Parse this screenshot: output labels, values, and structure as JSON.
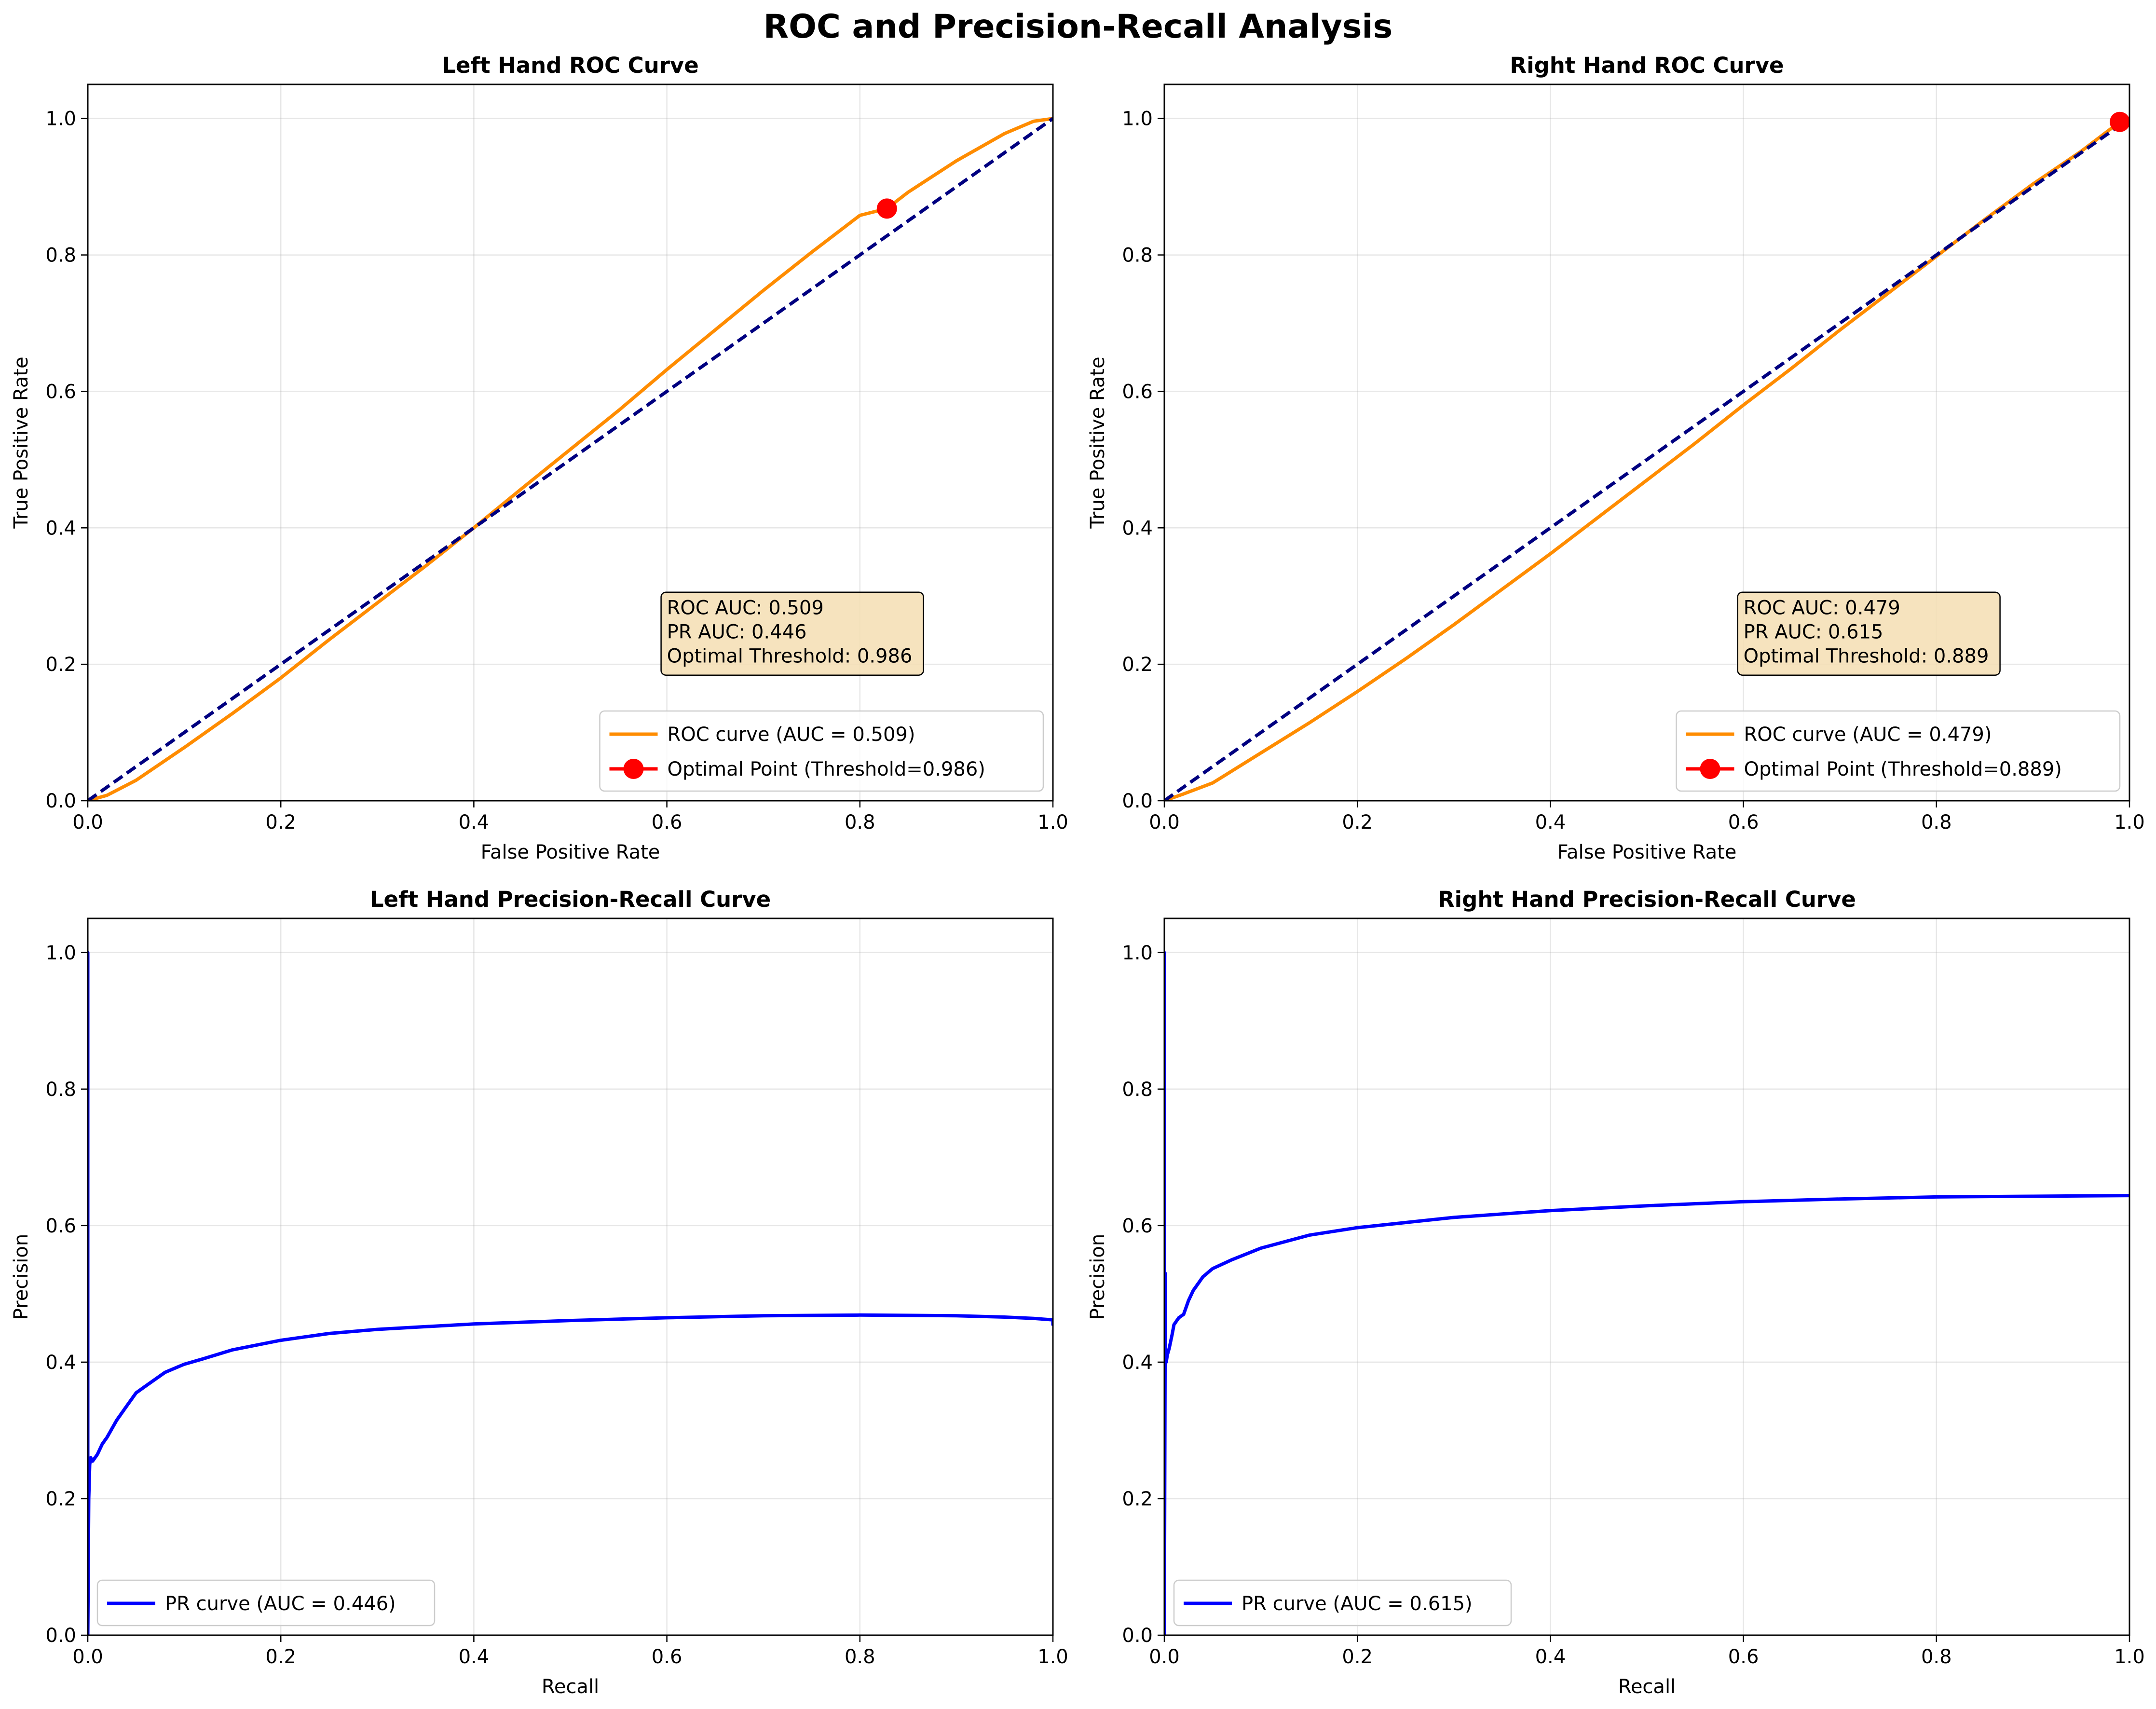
{
  "figure": {
    "title": "ROC and Precision-Recall Analysis"
  },
  "chart_data": [
    {
      "id": "left-roc",
      "type": "line",
      "title": "Left Hand ROC Curve",
      "xlabel": "False Positive Rate",
      "ylabel": "True Positive Rate",
      "xlim": [
        0,
        1
      ],
      "ylim": [
        0,
        1.05
      ],
      "xticks": [
        "0.0",
        "0.2",
        "0.4",
        "0.6",
        "0.8",
        "1.0"
      ],
      "yticks": [
        "0.0",
        "0.2",
        "0.4",
        "0.6",
        "0.8",
        "1.0"
      ],
      "grid": true,
      "legend_position": "lower-right",
      "series": [
        {
          "name": "ROC curve (AUC = 0.509)",
          "color": "#ff8c00",
          "style": "solid",
          "x": [
            0,
            0.02,
            0.05,
            0.1,
            0.15,
            0.2,
            0.25,
            0.3,
            0.35,
            0.4,
            0.45,
            0.5,
            0.55,
            0.6,
            0.65,
            0.7,
            0.75,
            0.8,
            0.828,
            0.85,
            0.9,
            0.95,
            0.98,
            1.0
          ],
          "y": [
            0,
            0.008,
            0.03,
            0.078,
            0.128,
            0.18,
            0.236,
            0.29,
            0.344,
            0.4,
            0.458,
            0.515,
            0.572,
            0.632,
            0.69,
            0.748,
            0.804,
            0.858,
            0.868,
            0.892,
            0.938,
            0.978,
            0.996,
            1.0
          ]
        },
        {
          "name": "",
          "color": "#000080",
          "style": "dashed",
          "x": [
            0,
            1
          ],
          "y": [
            0,
            1
          ]
        }
      ],
      "points": [
        {
          "name": "Optimal Point (Threshold=0.986)",
          "x": 0.828,
          "y": 0.868,
          "color": "#ff0000"
        }
      ],
      "annotation": [
        "ROC AUC: 0.509",
        "PR AUC: 0.446",
        "Optimal Threshold: 0.986"
      ]
    },
    {
      "id": "right-roc",
      "type": "line",
      "title": "Right Hand ROC Curve",
      "xlabel": "False Positive Rate",
      "ylabel": "True Positive Rate",
      "xlim": [
        0,
        1
      ],
      "ylim": [
        0,
        1.05
      ],
      "xticks": [
        "0.0",
        "0.2",
        "0.4",
        "0.6",
        "0.8",
        "1.0"
      ],
      "yticks": [
        "0.0",
        "0.2",
        "0.4",
        "0.6",
        "0.8",
        "1.0"
      ],
      "grid": true,
      "legend_position": "lower-right",
      "series": [
        {
          "name": "ROC curve (AUC = 0.479)",
          "color": "#ff8c00",
          "style": "solid",
          "x": [
            0,
            0.02,
            0.05,
            0.1,
            0.15,
            0.2,
            0.25,
            0.3,
            0.35,
            0.4,
            0.45,
            0.5,
            0.55,
            0.6,
            0.65,
            0.7,
            0.75,
            0.8,
            0.85,
            0.9,
            0.95,
            0.99
          ],
          "y": [
            0,
            0.01,
            0.026,
            0.07,
            0.114,
            0.16,
            0.208,
            0.258,
            0.31,
            0.362,
            0.416,
            0.47,
            0.524,
            0.58,
            0.634,
            0.69,
            0.744,
            0.798,
            0.852,
            0.904,
            0.952,
            0.995
          ]
        },
        {
          "name": "",
          "color": "#000080",
          "style": "dashed",
          "x": [
            0,
            1
          ],
          "y": [
            0,
            1
          ]
        }
      ],
      "points": [
        {
          "name": "Optimal Point (Threshold=0.889)",
          "x": 0.99,
          "y": 0.995,
          "color": "#ff0000"
        }
      ],
      "annotation": [
        "ROC AUC: 0.479",
        "PR AUC: 0.615",
        "Optimal Threshold: 0.889"
      ]
    },
    {
      "id": "left-pr",
      "type": "line",
      "title": "Left Hand Precision-Recall Curve",
      "xlabel": "Recall",
      "ylabel": "Precision",
      "xlim": [
        0,
        1
      ],
      "ylim": [
        0,
        1.05
      ],
      "xticks": [
        "0.0",
        "0.2",
        "0.4",
        "0.6",
        "0.8",
        "1.0"
      ],
      "yticks": [
        "0.0",
        "0.2",
        "0.4",
        "0.6",
        "0.8",
        "1.0"
      ],
      "grid": true,
      "legend_position": "lower-left",
      "series": [
        {
          "name": "PR curve (AUC = 0.446)",
          "color": "#0000ff",
          "style": "solid",
          "x": [
            0,
            0,
            0.001,
            0.002,
            0.003,
            0.005,
            0.01,
            0.015,
            0.02,
            0.03,
            0.04,
            0.05,
            0.06,
            0.08,
            0.1,
            0.12,
            0.15,
            0.2,
            0.25,
            0.3,
            0.4,
            0.5,
            0.6,
            0.7,
            0.8,
            0.9,
            0.95,
            0.98,
            1.0,
            1.0
          ],
          "y": [
            1.0,
            0.0,
            0.2,
            0.25,
            0.26,
            0.255,
            0.265,
            0.28,
            0.29,
            0.315,
            0.335,
            0.355,
            0.365,
            0.385,
            0.397,
            0.405,
            0.418,
            0.432,
            0.442,
            0.448,
            0.456,
            0.461,
            0.465,
            0.468,
            0.469,
            0.468,
            0.466,
            0.464,
            0.462,
            0.455
          ]
        }
      ],
      "points": [],
      "annotation": []
    },
    {
      "id": "right-pr",
      "type": "line",
      "title": "Right Hand Precision-Recall Curve",
      "xlabel": "Recall",
      "ylabel": "Precision",
      "xlim": [
        0,
        1
      ],
      "ylim": [
        0,
        1.05
      ],
      "xticks": [
        "0.0",
        "0.2",
        "0.4",
        "0.6",
        "0.8",
        "1.0"
      ],
      "yticks": [
        "0.0",
        "0.2",
        "0.4",
        "0.6",
        "0.8",
        "1.0"
      ],
      "grid": true,
      "legend_position": "lower-left",
      "series": [
        {
          "name": "PR curve (AUC = 0.615)",
          "color": "#0000ff",
          "style": "solid",
          "x": [
            0,
            0,
            0.001,
            0.001,
            0.002,
            0.003,
            0.005,
            0.008,
            0.01,
            0.015,
            0.02,
            0.025,
            0.03,
            0.04,
            0.05,
            0.07,
            0.1,
            0.15,
            0.2,
            0.3,
            0.4,
            0.5,
            0.6,
            0.7,
            0.8,
            0.9,
            1.0
          ],
          "y": [
            1.0,
            0.0,
            0.53,
            0.4,
            0.4,
            0.41,
            0.42,
            0.44,
            0.455,
            0.465,
            0.47,
            0.49,
            0.505,
            0.525,
            0.537,
            0.55,
            0.567,
            0.586,
            0.597,
            0.612,
            0.622,
            0.629,
            0.635,
            0.639,
            0.642,
            0.643,
            0.644
          ]
        }
      ],
      "points": [],
      "annotation": []
    }
  ]
}
